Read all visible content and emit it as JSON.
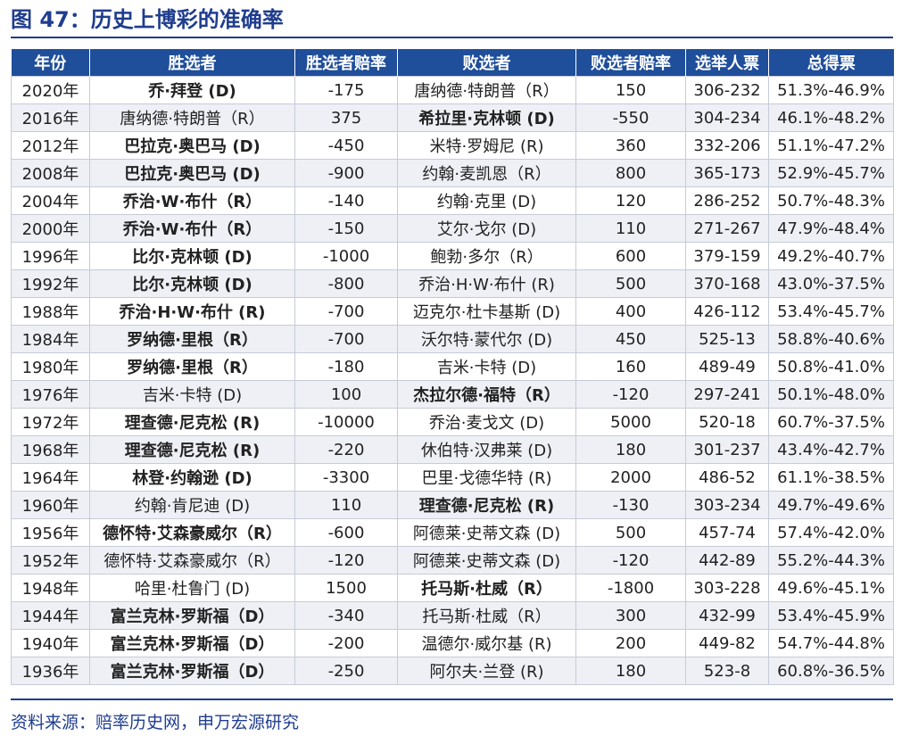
{
  "title": "图 47：历史上博彩的准确率",
  "source": "资料来源：赔率历史网，申万宏源研究",
  "columns": [
    "年份",
    "胜选者",
    "胜选者赔率",
    "败选者",
    "败选者赔率",
    "选举人票",
    "总得票"
  ],
  "rows": [
    {
      "year": "2020年",
      "winner": "乔·拜登 (D)",
      "winner_odds": "-175",
      "loser": "唐纳德·特朗普（R）",
      "loser_odds": "150",
      "electoral": "306-232",
      "popular": "51.3%-46.9%",
      "winner_bold": true,
      "loser_bold": false
    },
    {
      "year": "2016年",
      "winner": "唐纳德·特朗普（R）",
      "winner_odds": "375",
      "loser": "希拉里·克林顿 (D)",
      "loser_odds": "-550",
      "electoral": "304-234",
      "popular": "46.1%-48.2%",
      "winner_bold": false,
      "loser_bold": true
    },
    {
      "year": "2012年",
      "winner": "巴拉克·奥巴马 (D)",
      "winner_odds": "-450",
      "loser": "米特·罗姆尼 (R)",
      "loser_odds": "360",
      "electoral": "332-206",
      "popular": "51.1%-47.2%",
      "winner_bold": true,
      "loser_bold": false
    },
    {
      "year": "2008年",
      "winner": "巴拉克·奥巴马 (D)",
      "winner_odds": "-900",
      "loser": "约翰·麦凯恩（R）",
      "loser_odds": "800",
      "electoral": "365-173",
      "popular": "52.9%-45.7%",
      "winner_bold": true,
      "loser_bold": false
    },
    {
      "year": "2004年",
      "winner": "乔治·W·布什（R）",
      "winner_odds": "-140",
      "loser": "约翰·克里 (D)",
      "loser_odds": "120",
      "electoral": "286-252",
      "popular": "50.7%-48.3%",
      "winner_bold": true,
      "loser_bold": false
    },
    {
      "year": "2000年",
      "winner": "乔治·W·布什（R）",
      "winner_odds": "-150",
      "loser": "艾尔·戈尔 (D)",
      "loser_odds": "110",
      "electoral": "271-267",
      "popular": "47.9%-48.4%",
      "winner_bold": true,
      "loser_bold": false
    },
    {
      "year": "1996年",
      "winner": "比尔·克林顿 (D)",
      "winner_odds": "-1000",
      "loser": "鲍勃·多尔（R）",
      "loser_odds": "600",
      "electoral": "379-159",
      "popular": "49.2%-40.7%",
      "winner_bold": true,
      "loser_bold": false
    },
    {
      "year": "1992年",
      "winner": "比尔·克林顿 (D)",
      "winner_odds": "-800",
      "loser": "乔治·H·W·布什 (R)",
      "loser_odds": "500",
      "electoral": "370-168",
      "popular": "43.0%-37.5%",
      "winner_bold": true,
      "loser_bold": false
    },
    {
      "year": "1988年",
      "winner": "乔治·H·W·布什 (R)",
      "winner_odds": "-700",
      "loser": "迈克尔·杜卡基斯 (D)",
      "loser_odds": "400",
      "electoral": "426-112",
      "popular": "53.4%-45.7%",
      "winner_bold": true,
      "loser_bold": false
    },
    {
      "year": "1984年",
      "winner": "罗纳德·里根（R）",
      "winner_odds": "-700",
      "loser": "沃尔特·蒙代尔 (D)",
      "loser_odds": "450",
      "electoral": "525-13",
      "popular": "58.8%-40.6%",
      "winner_bold": true,
      "loser_bold": false
    },
    {
      "year": "1980年",
      "winner": "罗纳德·里根（R）",
      "winner_odds": "-180",
      "loser": "吉米·卡特 (D)",
      "loser_odds": "160",
      "electoral": "489-49",
      "popular": "50.8%-41.0%",
      "winner_bold": true,
      "loser_bold": false
    },
    {
      "year": "1976年",
      "winner": "吉米·卡特 (D)",
      "winner_odds": "100",
      "loser": "杰拉尔德·福特（R）",
      "loser_odds": "-120",
      "electoral": "297-241",
      "popular": "50.1%-48.0%",
      "winner_bold": false,
      "loser_bold": true
    },
    {
      "year": "1972年",
      "winner": "理查德·尼克松 (R)",
      "winner_odds": "-10000",
      "loser": "乔治·麦戈文 (D)",
      "loser_odds": "5000",
      "electoral": "520-18",
      "popular": "60.7%-37.5%",
      "winner_bold": true,
      "loser_bold": false
    },
    {
      "year": "1968年",
      "winner": "理查德·尼克松 (R)",
      "winner_odds": "-220",
      "loser": "休伯特·汉弗莱 (D)",
      "loser_odds": "180",
      "electoral": "301-237",
      "popular": "43.4%-42.7%",
      "winner_bold": true,
      "loser_bold": false
    },
    {
      "year": "1964年",
      "winner": "林登·约翰逊 (D)",
      "winner_odds": "-3300",
      "loser": "巴里·戈德华特 (R)",
      "loser_odds": "2000",
      "electoral": "486-52",
      "popular": "61.1%-38.5%",
      "winner_bold": true,
      "loser_bold": false
    },
    {
      "year": "1960年",
      "winner": "约翰·肯尼迪 (D)",
      "winner_odds": "110",
      "loser": "理查德·尼克松 (R)",
      "loser_odds": "-130",
      "electoral": "303-234",
      "popular": "49.7%-49.6%",
      "winner_bold": false,
      "loser_bold": true
    },
    {
      "year": "1956年",
      "winner": "德怀特·艾森豪威尔（R）",
      "winner_odds": "-600",
      "loser": "阿德莱·史蒂文森 (D)",
      "loser_odds": "500",
      "electoral": "457-74",
      "popular": "57.4%-42.0%",
      "winner_bold": true,
      "loser_bold": false
    },
    {
      "year": "1952年",
      "winner": "德怀特·艾森豪威尔（R）",
      "winner_odds": "-120",
      "loser": "阿德莱·史蒂文森 (D)",
      "loser_odds": "-120",
      "electoral": "442-89",
      "popular": "55.2%-44.3%",
      "winner_bold": false,
      "loser_bold": false
    },
    {
      "year": "1948年",
      "winner": "哈里·杜鲁门 (D)",
      "winner_odds": "1500",
      "loser": "托马斯·杜威（R）",
      "loser_odds": "-1800",
      "electoral": "303-228",
      "popular": "49.6%-45.1%",
      "winner_bold": false,
      "loser_bold": true
    },
    {
      "year": "1944年",
      "winner": "富兰克林·罗斯福（D）",
      "winner_odds": "-340",
      "loser": "托马斯·杜威（R）",
      "loser_odds": "300",
      "electoral": "432-99",
      "popular": "53.4%-45.9%",
      "winner_bold": true,
      "loser_bold": false
    },
    {
      "year": "1940年",
      "winner": "富兰克林·罗斯福（D）",
      "winner_odds": "-200",
      "loser": "温德尔·威尔基 (R)",
      "loser_odds": "200",
      "electoral": "449-82",
      "popular": "54.7%-44.8%",
      "winner_bold": true,
      "loser_bold": false
    },
    {
      "year": "1936年",
      "winner": "富兰克林·罗斯福（D）",
      "winner_odds": "-250",
      "loser": "阿尔夫·兰登 (R)",
      "loser_odds": "180",
      "electoral": "523-8",
      "popular": "60.8%-36.5%",
      "winner_bold": true,
      "loser_bold": false
    }
  ]
}
